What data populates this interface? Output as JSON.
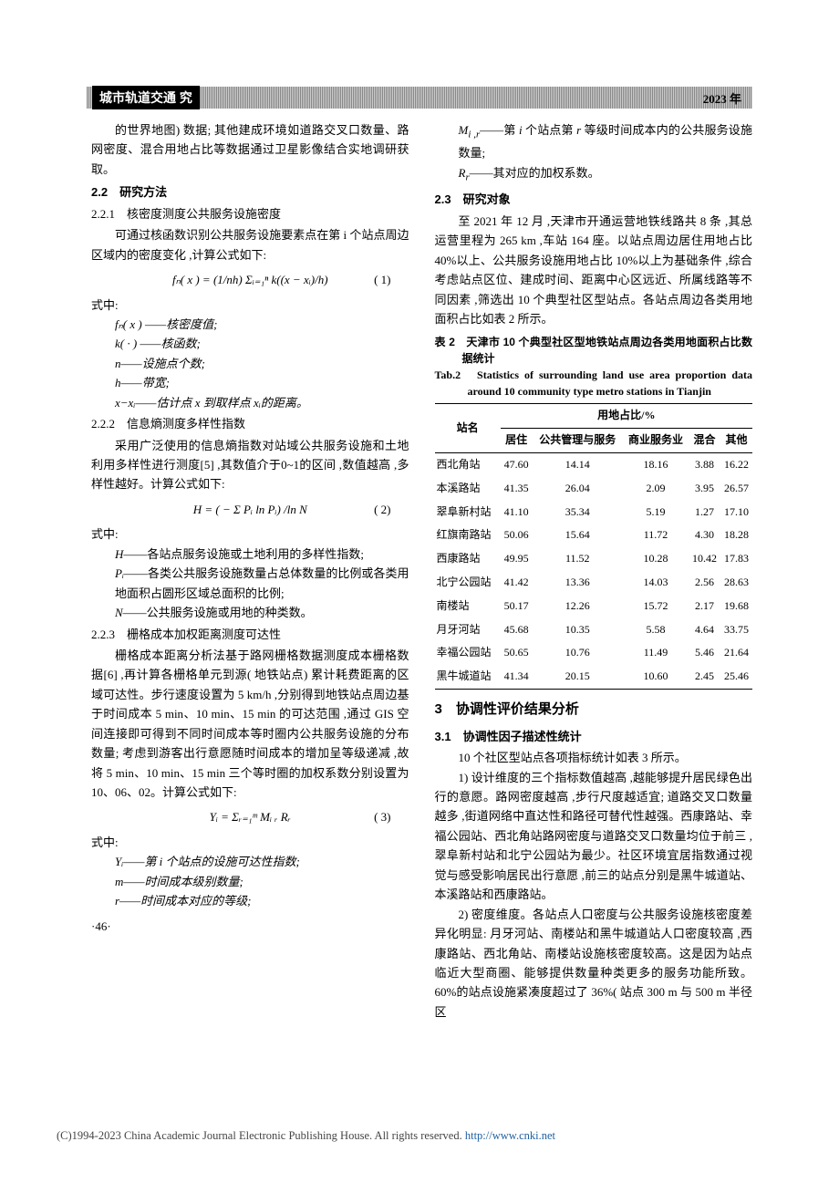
{
  "header": {
    "logo_text": "城市轨道交通 究",
    "year": "2023 年"
  },
  "left_col": {
    "p1": "的世界地图) 数据; 其他建成环境如道路交叉口数量、路网密度、混合用地占比等数据通过卫星影像结合实地调研获取。",
    "sec22": "2.2　研究方法",
    "sec221": "2.2.1　核密度测度公共服务设施密度",
    "p221": "可通过核函数识别公共服务设施要素点在第 i 个站点周边区域内的密度变化 ,计算公式如下:",
    "formula1": "fₙ( x ) = (1/nh) Σᵢ₌₁ⁿ k((x − xᵢ)/h)",
    "formula1_num": "( 1)",
    "shizhong1": "式中:",
    "vars1": [
      "fₙ( x ) ——核密度值;",
      "k( · ) ——核函数;",
      "n——设施点个数;",
      "h——带宽;",
      "x−xᵢ——估计点 x 到取样点 xᵢ的距离。"
    ],
    "sec222": "2.2.2　信息熵测度多样性指数",
    "p222": "采用广泛使用的信息熵指数对站域公共服务设施和土地利用多样性进行测度[5] ,其数值介于0~1的区间 ,数值越高 ,多样性越好。计算公式如下:",
    "formula2": "H = ( − Σ Pᵢ ln Pᵢ) /ln N",
    "formula2_num": "( 2)",
    "shizhong2": "式中:",
    "vars2": [
      "H——各站点服务设施或土地利用的多样性指数;",
      "Pᵢ——各类公共服务设施数量占总体数量的比例或各类用地面积占圆形区域总面积的比例;",
      "N——公共服务设施或用地的种类数。"
    ],
    "sec223": "2.2.3　栅格成本加权距离测度可达性",
    "p223": "栅格成本距离分析法基于路网栅格数据测度成本栅格数据[6] ,再计算各栅格单元到源( 地铁站点) 累计耗费距离的区域可达性。步行速度设置为 5 km/h ,分别得到地铁站点周边基于时间成本 5 min、10 min、15 min 的可达范围 ,通过 GIS 空间连接即可得到不同时间成本等时圈内公共服务设施的分布数量; 考虑到游客出行意愿随时间成本的增加呈等级递减 ,故将 5 min、10 min、15 min 三个等时圈的加权系数分别设置为 10、06、02。计算公式如下:",
    "formula3": "Yᵢ = Σᵣ₌₁ᵐ Mᵢ ᵣ Rᵣ",
    "formula3_num": "( 3)",
    "shizhong3": "式中:",
    "vars3": [
      "Yᵢ——第 i 个站点的设施可达性指数;",
      "m——时间成本级别数量;",
      "r——时间成本对应的等级;"
    ],
    "page_num": "·46·"
  },
  "right_col": {
    "vars_cont": [
      "Mᵢ ᵣ——第 i 个站点第 r 等级时间成本内的公共服务设施数量;",
      "Rᵣ——其对应的加权系数。"
    ],
    "sec23": "2.3　研究对象",
    "p23": "至 2021 年 12 月 ,天津市开通运营地铁线路共 8 条 ,其总运营里程为 265 km ,车站 164 座。以站点周边居住用地占比 40%以上、公共服务设施用地占比 10%以上为基础条件 ,综合考虑站点区位、建成时间、距离中心区远近、所属线路等不同因素 ,筛选出 10 个典型社区型站点。各站点周边各类用地面积占比如表 2 所示。",
    "table2_caption_cn": "表 2　天津市 10 个典型社区型地铁站点周边各类用地面积占比数据统计",
    "table2_caption_en": "Tab.2　Statistics of surrounding land use area proportion data around 10 community type metro stations in Tianjin",
    "table2": {
      "header_group": "用地占比/%",
      "col_station": "站名",
      "cols": [
        "居住",
        "公共管理与服务",
        "商业服务业",
        "混合",
        "其他"
      ],
      "rows": [
        {
          "name": "西北角站",
          "vals": [
            "47.60",
            "14.14",
            "18.16",
            "3.88",
            "16.22"
          ]
        },
        {
          "name": "本溪路站",
          "vals": [
            "41.35",
            "26.04",
            "2.09",
            "3.95",
            "26.57"
          ]
        },
        {
          "name": "翠阜新村站",
          "vals": [
            "41.10",
            "35.34",
            "5.19",
            "1.27",
            "17.10"
          ]
        },
        {
          "name": "红旗南路站",
          "vals": [
            "50.06",
            "15.64",
            "11.72",
            "4.30",
            "18.28"
          ]
        },
        {
          "name": "西康路站",
          "vals": [
            "49.95",
            "11.52",
            "10.28",
            "10.42",
            "17.83"
          ]
        },
        {
          "name": "北宁公园站",
          "vals": [
            "41.42",
            "13.36",
            "14.03",
            "2.56",
            "28.63"
          ]
        },
        {
          "name": "南楼站",
          "vals": [
            "50.17",
            "12.26",
            "15.72",
            "2.17",
            "19.68"
          ]
        },
        {
          "name": "月牙河站",
          "vals": [
            "45.68",
            "10.35",
            "5.58",
            "4.64",
            "33.75"
          ]
        },
        {
          "name": "幸福公园站",
          "vals": [
            "50.65",
            "10.76",
            "11.49",
            "5.46",
            "21.64"
          ]
        },
        {
          "name": "黑牛城道站",
          "vals": [
            "41.34",
            "20.15",
            "10.60",
            "2.45",
            "25.46"
          ]
        }
      ]
    },
    "h3": "3　协调性评价结果分析",
    "sec31": "3.1　协调性因子描述性统计",
    "p31a": "10 个社区型站点各项指标统计如表 3 所示。",
    "p31b": "1) 设计维度的三个指标数值越高 ,越能够提升居民绿色出行的意愿。路网密度越高 ,步行尺度越适宜; 道路交叉口数量越多 ,街道网络中直达性和路径可替代性越强。西康路站、幸福公园站、西北角站路网密度与道路交叉口数量均位于前三 ,翠阜新村站和北宁公园站为最少。社区环境宜居指数通过视觉与感受影响居民出行意愿 ,前三的站点分别是黑牛城道站、本溪路站和西康路站。",
    "p31c": "2) 密度维度。各站点人口密度与公共服务设施核密度差异化明显: 月牙河站、南楼站和黑牛城道站人口密度较高 ,西康路站、西北角站、南楼站设施核密度较高。这是因为站点临近大型商圈、能够提供数量种类更多的服务功能所致。60%的站点设施紧凑度超过了 36%( 站点 300 m 与 500 m 半径区"
  },
  "footer": {
    "text": "(C)1994-2023 China Academic Journal Electronic Publishing House. All rights reserved.   ",
    "link": "http://www.cnki.net"
  }
}
